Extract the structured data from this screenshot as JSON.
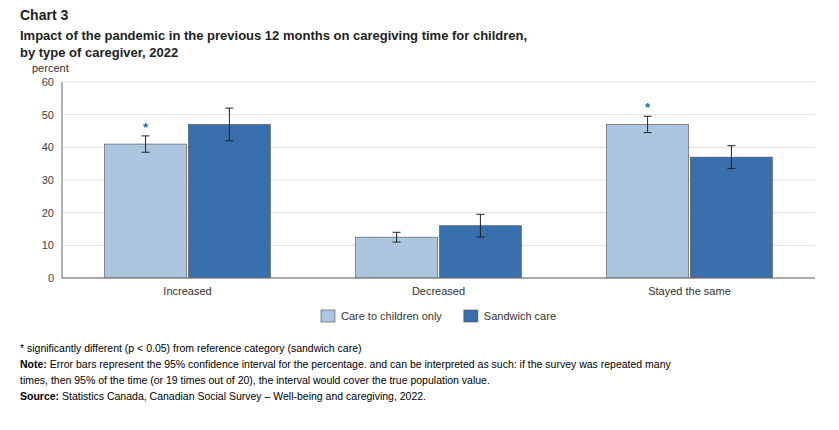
{
  "chart_data": {
    "type": "bar",
    "title": "Chart 3",
    "subtitle": [
      "Impact of the pandemic in the previous 12 months on caregiving time for children,",
      "by type of caregiver, 2022"
    ],
    "ylabel": "percent",
    "categories": [
      "Increased",
      "Decreased",
      "Stayed the same"
    ],
    "series": [
      {
        "name": "Care to children only",
        "color": "#adc6e0",
        "values": [
          41.0,
          12.5,
          47.0
        ],
        "errors": [
          2.5,
          1.5,
          2.5
        ]
      },
      {
        "name": "Sandwich care",
        "color": "#3a6fad",
        "values": [
          47.0,
          16.0,
          37.0
        ],
        "errors": [
          5.0,
          3.5,
          3.5
        ]
      }
    ],
    "annotations": [
      {
        "text": "*",
        "series": 0,
        "category": 0
      },
      {
        "text": "*",
        "series": 0,
        "category": 2
      }
    ],
    "ylim": [
      0,
      60
    ],
    "yticks": [
      0,
      10,
      20,
      30,
      40,
      50,
      60
    ],
    "grid": true,
    "legend": "bottom",
    "notes": [
      "* significantly different (p < 0.05) from reference category (sandwich care)",
      "Note: Error bars represent the 95% confidence interval for the percentage. and can be interpreted as such: if the survey was repeated many",
      "times, then 95% of the time (or 19 times out of 20), the interval would cover the true population value.",
      "Source: Statistics Canada, Canadian Social Survey – Well-being and caregiving, 2022."
    ]
  }
}
